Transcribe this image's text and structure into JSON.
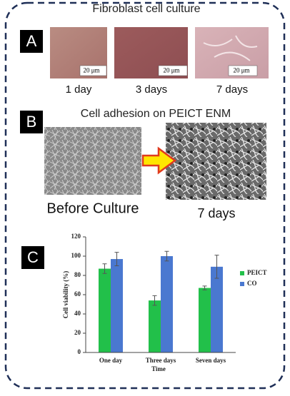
{
  "panels": {
    "A": {
      "label": "A",
      "title": "Fibroblast cell culture",
      "scale_labels": [
        "20 μm",
        "20 μm",
        "20 μm"
      ],
      "captions": [
        "1 day",
        "3 days",
        "7 days"
      ]
    },
    "B": {
      "label": "B",
      "title": "Cell adhesion on PEICT ENM",
      "captions": [
        "Before Culture",
        "7 days"
      ]
    },
    "C": {
      "label": "C"
    }
  },
  "chart_data": {
    "type": "bar",
    "xlabel": "Time",
    "ylabel": "Cell viability (%)",
    "categories": [
      "One day",
      "Three days",
      "Seven days"
    ],
    "series": [
      {
        "name": "PEICT",
        "color": "#22c04a",
        "values": [
          87,
          54,
          67
        ],
        "errors": [
          5,
          5,
          2
        ]
      },
      {
        "name": "CO",
        "color": "#4a78d0",
        "values": [
          97,
          100,
          89
        ],
        "errors": [
          7,
          5,
          12
        ]
      }
    ],
    "ylim": [
      0,
      120
    ],
    "yticks": [
      0,
      20,
      40,
      60,
      80,
      100,
      120
    ],
    "legend": "right"
  }
}
